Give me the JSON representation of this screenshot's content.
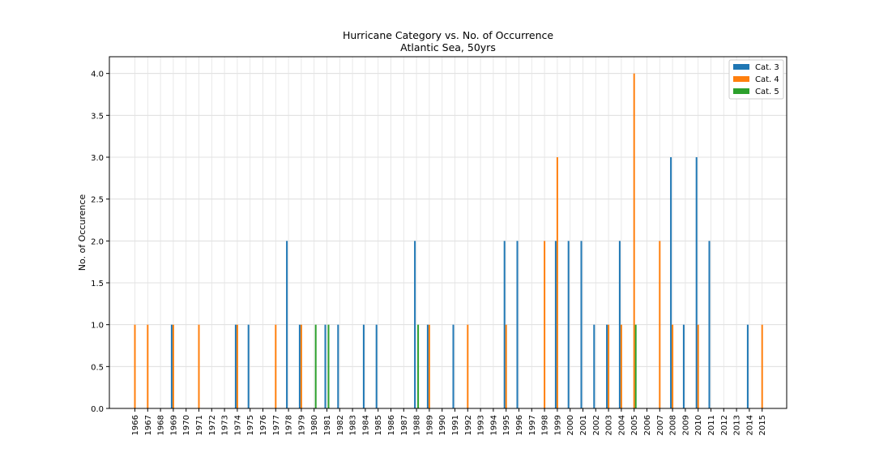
{
  "chart_data": {
    "type": "bar",
    "title": "Hurricane Category vs. No. of Occurrence",
    "subtitle": "Atlantic Sea, 50yrs",
    "xlabel": "",
    "ylabel": "No. of Occurence",
    "ylim": [
      0,
      4.2
    ],
    "yticks": [
      "0.0",
      "0.5",
      "1.0",
      "1.5",
      "2.0",
      "2.5",
      "3.0",
      "3.5",
      "4.0"
    ],
    "grid": true,
    "legend_position": "top-right",
    "categories": [
      "1966",
      "1967",
      "1968",
      "1969",
      "1970",
      "1971",
      "1972",
      "1973",
      "1974",
      "1975",
      "1976",
      "1977",
      "1978",
      "1979",
      "1980",
      "1981",
      "1982",
      "1983",
      "1984",
      "1985",
      "1986",
      "1987",
      "1988",
      "1989",
      "1990",
      "1991",
      "1992",
      "1993",
      "1994",
      "1995",
      "1996",
      "1997",
      "1998",
      "1999",
      "2000",
      "2001",
      "2002",
      "2003",
      "2004",
      "2005",
      "2006",
      "2007",
      "2008",
      "2009",
      "2010",
      "2011",
      "2012",
      "2013",
      "2014",
      "2015"
    ],
    "series": [
      {
        "name": "Cat. 3",
        "color": "#1f77b4",
        "values": [
          0,
          0,
          0,
          1,
          0,
          0,
          0,
          0,
          1,
          1,
          0,
          0,
          2,
          1,
          0,
          1,
          1,
          0,
          1,
          1,
          0,
          0,
          2,
          1,
          0,
          1,
          0,
          0,
          0,
          2,
          2,
          0,
          0,
          2,
          2,
          2,
          1,
          1,
          2,
          0,
          0,
          0,
          3,
          1,
          3,
          2,
          0,
          0,
          1,
          0
        ]
      },
      {
        "name": "Cat. 4",
        "color": "#ff7f0e",
        "values": [
          1,
          1,
          0,
          1,
          0,
          1,
          0,
          0,
          1,
          0,
          0,
          1,
          0,
          1,
          0,
          0,
          0,
          0,
          0,
          0,
          0,
          0,
          0,
          1,
          0,
          0,
          1,
          0,
          0,
          1,
          0,
          0,
          2,
          3,
          0,
          0,
          0,
          1,
          1,
          4,
          0,
          2,
          1,
          0,
          1,
          0,
          0,
          0,
          0,
          1
        ]
      },
      {
        "name": "Cat. 5",
        "color": "#2ca02c",
        "values": [
          0,
          0,
          0,
          0,
          0,
          0,
          0,
          0,
          0,
          0,
          0,
          0,
          0,
          0,
          1,
          1,
          0,
          0,
          0,
          0,
          0,
          0,
          1,
          0,
          0,
          0,
          0,
          0,
          0,
          0,
          0,
          0,
          0,
          0,
          0,
          0,
          0,
          0,
          0,
          1,
          0,
          0,
          0,
          0,
          0,
          0,
          0,
          0,
          0,
          0
        ]
      }
    ]
  }
}
